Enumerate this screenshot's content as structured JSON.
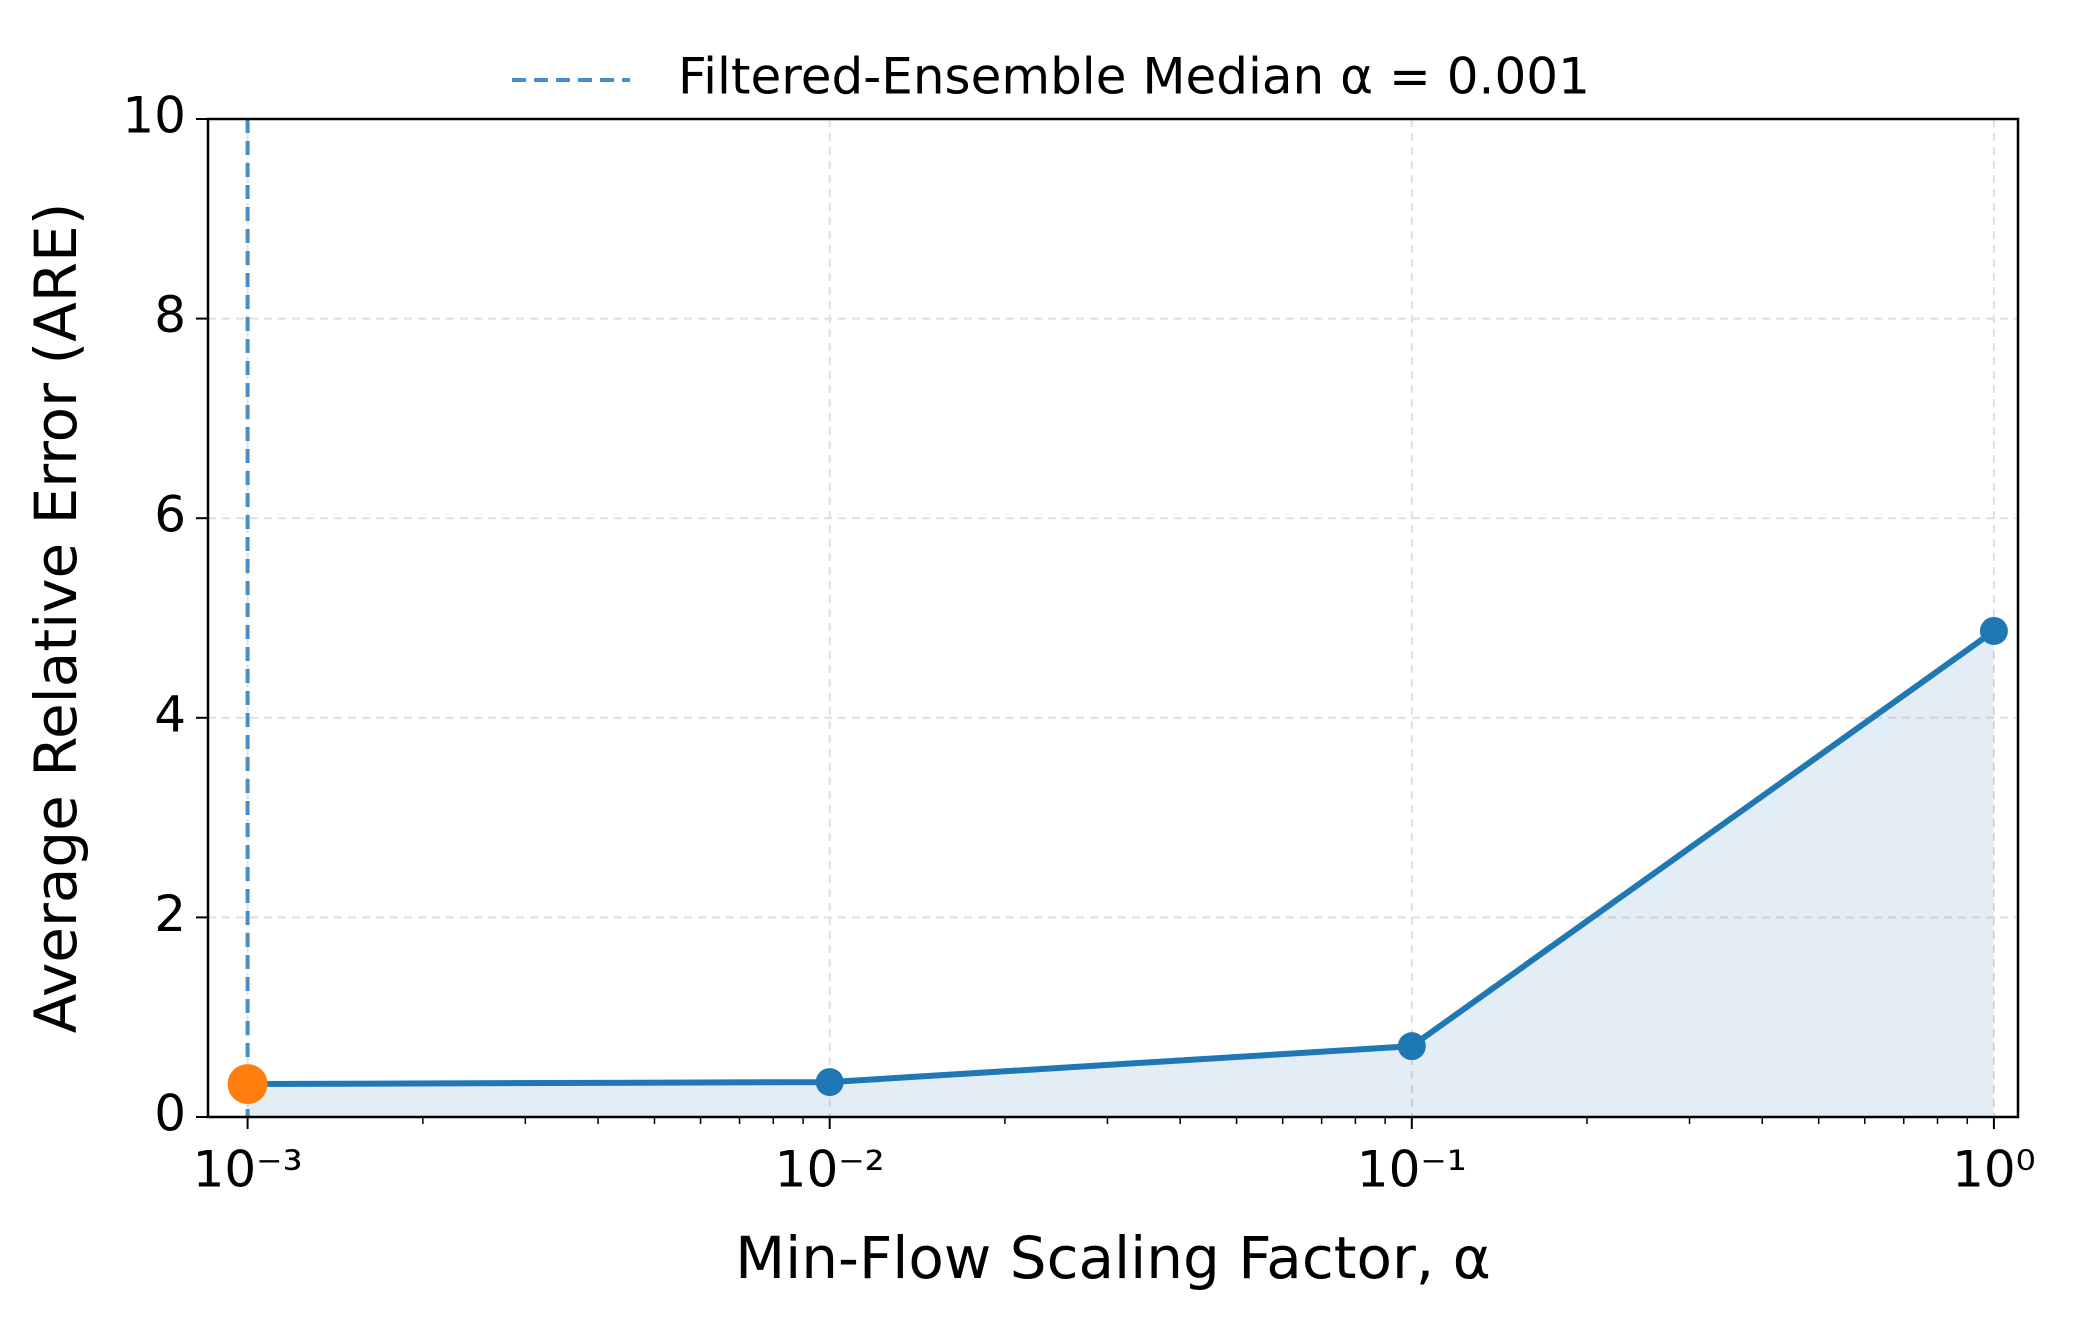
{
  "chart_data": {
    "type": "line",
    "xlabel": "Min-Flow Scaling Factor, α",
    "ylabel": "Average Relative Error (ARE)",
    "log_x": true,
    "grid": true,
    "legend_position": "top",
    "series": [
      {
        "x": [
          0.001,
          0.01,
          0.1,
          1
        ],
        "values": [
          0.33,
          0.35,
          0.71,
          4.87
        ],
        "color": "#1f77b4",
        "fill": true
      }
    ],
    "highlight": {
      "x": 0.001,
      "y": 0.33,
      "color": "#ff7f0e"
    },
    "reference_line": {
      "name": "Filtered-Ensemble Median α = 0.001",
      "x": 0.001,
      "color": "#4a8cc4",
      "style": "dashed"
    },
    "xlim": [
      0.000855,
      1.1
    ],
    "ylim": [
      0,
      10
    ],
    "xticks": [
      {
        "value": 0.001,
        "label": "10⁻³"
      },
      {
        "value": 0.01,
        "label": "10⁻²"
      },
      {
        "value": 0.1,
        "label": "10⁻¹"
      },
      {
        "value": 1,
        "label": "10⁰"
      }
    ],
    "minor_xticks": [
      0.002,
      0.003,
      0.004,
      0.005,
      0.006,
      0.007,
      0.008,
      0.009,
      0.02,
      0.03,
      0.04,
      0.05,
      0.06,
      0.07,
      0.08,
      0.09,
      0.2,
      0.3,
      0.4,
      0.5,
      0.6,
      0.7,
      0.8,
      0.9
    ],
    "yticks": [
      0,
      2,
      4,
      6,
      8,
      10
    ]
  }
}
